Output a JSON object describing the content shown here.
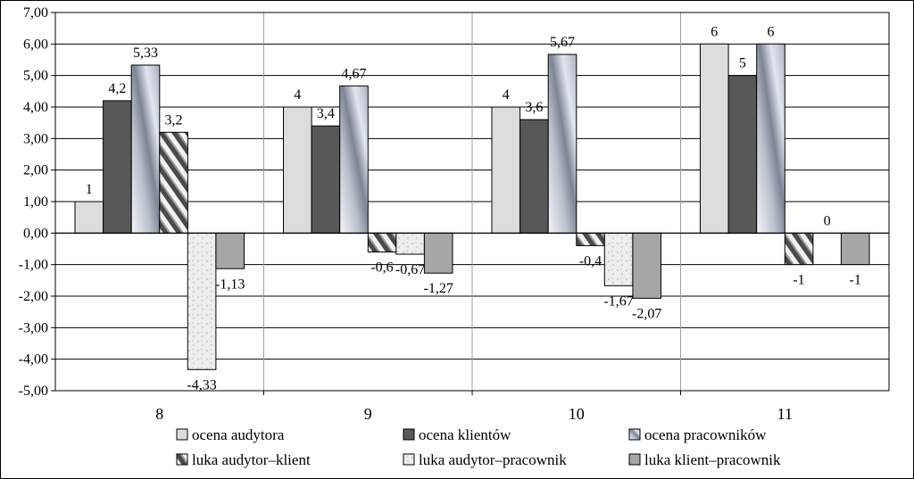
{
  "chart_data": {
    "type": "bar",
    "title": "",
    "xlabel": "",
    "ylabel": "",
    "ylim": [
      -5,
      7
    ],
    "ytick_step": 1,
    "ytick_labels": [
      "-5,00",
      "-4,00",
      "-3,00",
      "-2,00",
      "-1,00",
      "0,00",
      "1,00",
      "2,00",
      "3,00",
      "4,00",
      "5,00",
      "6,00",
      "7,00"
    ],
    "grid": true,
    "legend_position": "bottom",
    "categories": [
      "8",
      "9",
      "10",
      "11"
    ],
    "series": [
      {
        "name": "ocena audytora",
        "values": [
          1,
          4,
          4,
          6
        ],
        "labels": [
          "1",
          "4",
          "4",
          "6"
        ],
        "fill": "#dcdcdc",
        "pattern": "none"
      },
      {
        "name": "ocena klientów",
        "values": [
          4.2,
          3.4,
          3.6,
          5
        ],
        "labels": [
          "4,2",
          "3,4",
          "3,6",
          "5"
        ],
        "fill": "#585858",
        "pattern": "none"
      },
      {
        "name": "ocena pracowników",
        "values": [
          5.33,
          4.67,
          5.67,
          6
        ],
        "labels": [
          "5,33",
          "4,67",
          "5,67",
          "6"
        ],
        "fill": "#c8ccd6",
        "pattern": "metal"
      },
      {
        "name": "luka audytor–klient",
        "values": [
          3.2,
          -0.6,
          -0.4,
          -1
        ],
        "labels": [
          "3,2",
          "-0,6",
          "-0,4",
          "-1"
        ],
        "fill": "#9a9a9a",
        "pattern": "diagonal"
      },
      {
        "name": "luka audytor–pracownik",
        "values": [
          -4.33,
          -0.67,
          -1.67,
          0
        ],
        "labels": [
          "-4,33",
          "-0,67",
          "-1,67",
          "0"
        ],
        "fill": "#ececec",
        "pattern": "marble"
      },
      {
        "name": "luka klient–pracownik",
        "values": [
          -1.13,
          -1.27,
          -2.07,
          -1
        ],
        "labels": [
          "-1,13",
          "-1,27",
          "-2,07",
          "-1"
        ],
        "fill": "#a6a6a6",
        "pattern": "none"
      }
    ]
  }
}
